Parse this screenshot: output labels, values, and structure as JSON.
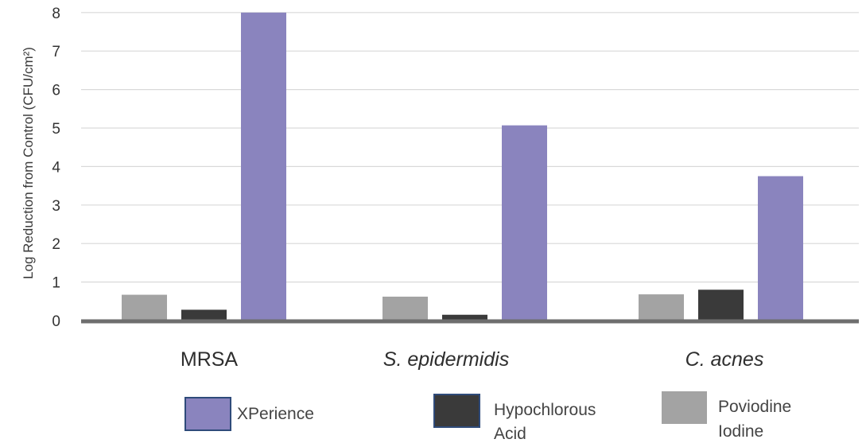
{
  "chart_data": {
    "type": "bar",
    "title": "",
    "xlabel": "",
    "ylabel": "Log Reduction from Control (CFU/cm²)",
    "ylim": [
      0,
      8
    ],
    "yticks": [
      0,
      1,
      2,
      3,
      4,
      5,
      6,
      7,
      8
    ],
    "grid": true,
    "legend_position": "bottom",
    "categories": [
      "MRSA",
      "S. epidermidis",
      "C. acnes"
    ],
    "category_italic": [
      false,
      true,
      true
    ],
    "series": [
      {
        "name": "Poviodine Iodine",
        "legend_lines": [
          "Poviodine",
          "Iodine"
        ],
        "color": "#a3a3a3",
        "values": [
          0.67,
          0.62,
          0.68
        ]
      },
      {
        "name": "Hypochlorous Acid",
        "legend_lines": [
          "Hypochlorous",
          "Acid"
        ],
        "color": "#3a3a3a",
        "values": [
          0.28,
          0.15,
          0.8
        ]
      },
      {
        "name": "XPerience",
        "legend_lines": [
          "XPerience"
        ],
        "color": "#8a84be",
        "values": [
          8.0,
          5.07,
          3.75
        ]
      }
    ],
    "legend_order": [
      2,
      1,
      0
    ]
  }
}
